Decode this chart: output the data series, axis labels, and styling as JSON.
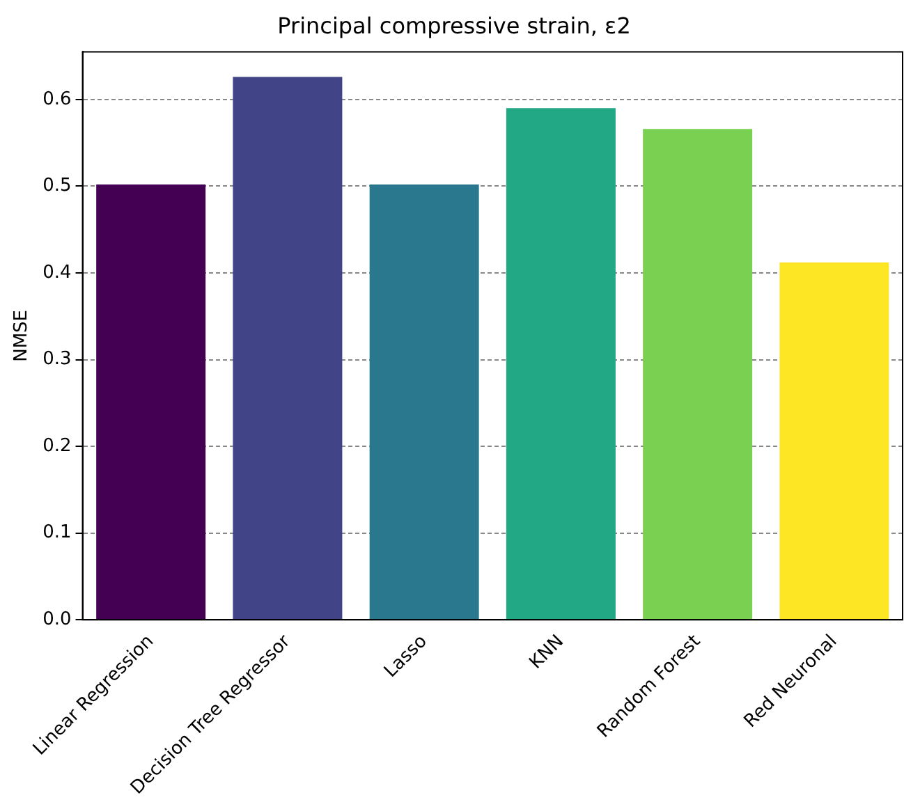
{
  "chart_data": {
    "type": "bar",
    "title": "Principal compressive strain, ε2",
    "ylabel": "NMSE",
    "categories": [
      "Linear Regression",
      "Decision Tree Regressor",
      "Lasso",
      "KNN",
      "Random Forest",
      "Red Neuronal"
    ],
    "values": [
      0.502,
      0.626,
      0.502,
      0.59,
      0.566,
      0.412
    ],
    "colors": [
      "#440154",
      "#414487",
      "#2a788e",
      "#22a884",
      "#7ad151",
      "#fde725"
    ],
    "ylim": [
      0,
      0.655
    ],
    "yticks": [
      {
        "value": 0,
        "label": "0.0"
      },
      0.1,
      0.2,
      0.3,
      0.4,
      0.5,
      0.6
    ],
    "grid": "y"
  }
}
